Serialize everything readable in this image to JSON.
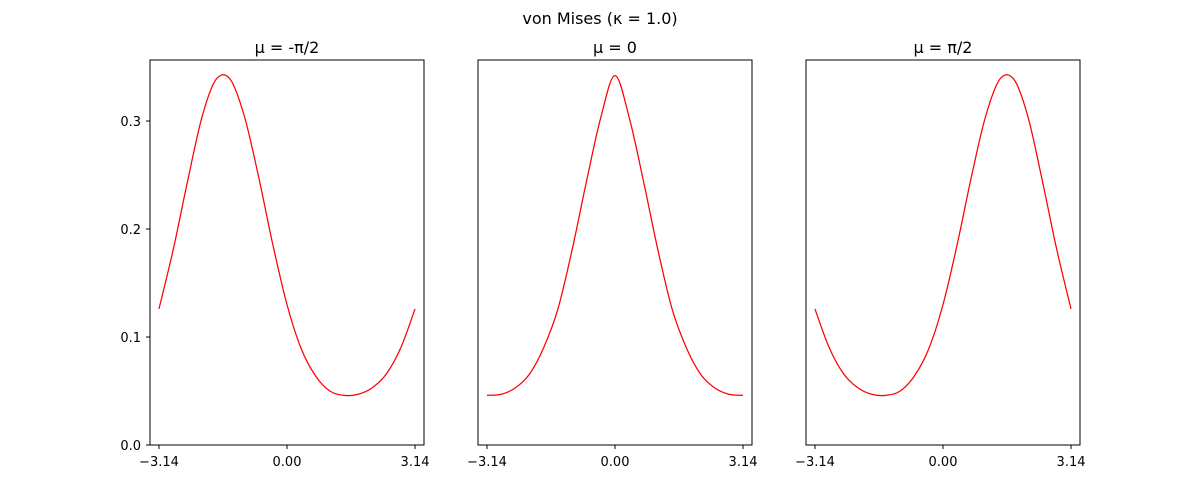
{
  "figure": {
    "suptitle": "von Mises  (κ = 1.0)"
  },
  "chart_data": [
    {
      "type": "line",
      "title": "μ = -π/2",
      "xlabel": "",
      "ylabel": "",
      "xlim": [
        -3.36,
        3.36
      ],
      "ylim": [
        0,
        0.3565
      ],
      "x_ticks": [
        -3.14,
        0.0,
        3.14
      ],
      "x_tick_labels": [
        "−3.14",
        "0.00",
        "3.14"
      ],
      "y_ticks": [
        0.0,
        0.1,
        0.2,
        0.3
      ],
      "y_tick_labels": [
        "0.0",
        "0.1",
        "0.2",
        "0.3"
      ],
      "show_y_tick_labels": true,
      "grid": false,
      "series": [
        {
          "color": "#ff0000",
          "x": [
            -3.14,
            -2.79,
            -2.44,
            -2.09,
            -1.75,
            -1.4,
            -1.05,
            -0.7,
            -0.35,
            0.0,
            0.35,
            0.7,
            1.05,
            1.4,
            1.75,
            2.09,
            2.44,
            2.79,
            3.14
          ],
          "y": [
            0.126,
            0.181,
            0.244,
            0.303,
            0.338,
            0.339,
            0.305,
            0.249,
            0.186,
            0.13,
            0.089,
            0.064,
            0.05,
            0.046,
            0.047,
            0.053,
            0.066,
            0.09,
            0.126
          ]
        }
      ]
    },
    {
      "type": "line",
      "title": "μ = 0",
      "xlabel": "",
      "ylabel": "",
      "xlim": [
        -3.36,
        3.36
      ],
      "ylim": [
        0,
        0.3565
      ],
      "x_ticks": [
        -3.14,
        0.0,
        3.14
      ],
      "x_tick_labels": [
        "−3.14",
        "0.00",
        "3.14"
      ],
      "y_ticks": [],
      "y_tick_labels": [],
      "show_y_tick_labels": false,
      "grid": false,
      "series": [
        {
          "color": "#ff0000",
          "x": [
            -3.14,
            -2.79,
            -2.44,
            -2.09,
            -1.75,
            -1.4,
            -1.05,
            -0.7,
            -0.35,
            0.0,
            0.35,
            0.7,
            1.05,
            1.4,
            1.75,
            2.09,
            2.44,
            2.79,
            3.14
          ],
          "y": [
            0.046,
            0.047,
            0.053,
            0.066,
            0.09,
            0.126,
            0.181,
            0.244,
            0.303,
            0.342,
            0.303,
            0.244,
            0.181,
            0.126,
            0.09,
            0.066,
            0.053,
            0.047,
            0.046
          ]
        }
      ]
    },
    {
      "type": "line",
      "title": "μ = π/2",
      "xlabel": "",
      "ylabel": "",
      "xlim": [
        -3.36,
        3.36
      ],
      "ylim": [
        0,
        0.3565
      ],
      "x_ticks": [
        -3.14,
        0.0,
        3.14
      ],
      "x_tick_labels": [
        "−3.14",
        "0.00",
        "3.14"
      ],
      "y_ticks": [],
      "y_tick_labels": [],
      "show_y_tick_labels": false,
      "grid": false,
      "series": [
        {
          "color": "#ff0000",
          "x": [
            -3.14,
            -2.79,
            -2.44,
            -2.09,
            -1.75,
            -1.4,
            -1.05,
            -0.7,
            -0.35,
            0.0,
            0.35,
            0.7,
            1.05,
            1.4,
            1.75,
            2.09,
            2.44,
            2.79,
            3.14
          ],
          "y": [
            0.126,
            0.09,
            0.066,
            0.053,
            0.047,
            0.046,
            0.05,
            0.064,
            0.089,
            0.13,
            0.186,
            0.249,
            0.305,
            0.339,
            0.338,
            0.303,
            0.244,
            0.181,
            0.126
          ]
        }
      ]
    }
  ]
}
